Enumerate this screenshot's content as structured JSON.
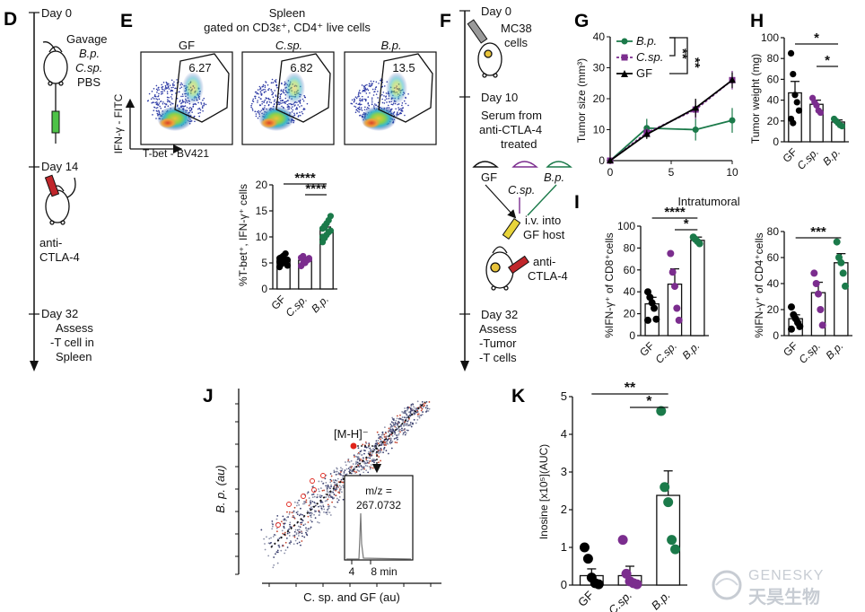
{
  "panels": {
    "D": {
      "label": "D",
      "day0": "Day 0",
      "gavage": [
        "Gavage",
        "B.p.",
        "C.sp.",
        "PBS"
      ],
      "day14": "Day 14",
      "anti": [
        "anti-",
        "CTLA-4"
      ],
      "day32": "Day 32",
      "assess": [
        "Assess",
        "-T cell in",
        "Spleen"
      ]
    },
    "E": {
      "label": "E",
      "title1": "Spleen",
      "title2": "gated on CD3ε⁺, CD4⁺ live cells",
      "flow_groups": [
        "GF",
        "C.sp.",
        "B.p."
      ],
      "flow_pct": [
        "6.27",
        "6.82",
        "13.5"
      ],
      "flow_ylabel": "IFN-γ - FITC",
      "flow_xlabel": "T-bet - BV421",
      "bar_ylabel": "%T-bet⁺, IFN-γ⁺ cells",
      "sig": [
        "****",
        "****"
      ]
    },
    "F": {
      "label": "F",
      "day0": "Day 0",
      "mc38": [
        "MC38",
        "cells"
      ],
      "day10": "Day 10",
      "serum": [
        "Serum from",
        "anti-CTLA-4",
        "treated"
      ],
      "donors": [
        "GF",
        "C.sp.",
        "B.p."
      ],
      "iv": [
        "i.v. into",
        "GF host"
      ],
      "anti": [
        "anti-",
        "CTLA-4"
      ],
      "day32": "Day 32",
      "assess": [
        "Assess",
        "-Tumor",
        "-T cells"
      ]
    },
    "G": {
      "label": "G",
      "ylabel": "Tumor size (mm³)",
      "legend": [
        "B.p.",
        "C.sp.",
        "GF"
      ],
      "sig": [
        "**",
        "**"
      ]
    },
    "H": {
      "label": "H",
      "ylabel": "Tumor weight (mg)",
      "sig": [
        "*",
        "*"
      ]
    },
    "I": {
      "label": "I",
      "title": "Intratumoral",
      "ylabel_cd8": "%IFN-γ⁺ of  CD8⁺cells",
      "ylabel_cd4": "%IFN-γ⁺ of  CD4⁺cells",
      "sig_cd8": [
        "****",
        "*"
      ],
      "sig_cd4": [
        "***"
      ]
    },
    "J": {
      "label": "J",
      "ylabel": "B. p. (au)",
      "xlabel": "C. sp. and GF (au)",
      "ion": "[M-H]⁻",
      "mz": [
        "m/z =",
        "267.0732"
      ],
      "inset_ticks": [
        "4",
        "8 min"
      ]
    },
    "K": {
      "label": "K",
      "ylabel": "Inosine [x10⁵](AUC)",
      "sig": [
        "**",
        "*"
      ]
    }
  },
  "colors": {
    "GF": "#000000",
    "Csp": "#7b2d8e",
    "Bp": "#1b7a4a",
    "sig_point": "#e0241b",
    "tube": "#4dc247"
  },
  "watermark": {
    "line1": "GENESKY",
    "line2": "天昊生物"
  },
  "chart_data": [
    {
      "type": "bar",
      "panel": "E",
      "categories": [
        "GF",
        "C.sp.",
        "B.p."
      ],
      "values": [
        5.6,
        5.5,
        11.3
      ],
      "errors": [
        0.4,
        0.3,
        0.6
      ],
      "ylim": [
        0,
        20
      ],
      "yticks": [
        0,
        5,
        10,
        15,
        20
      ],
      "points": [
        [
          4.2,
          4.8,
          5.0,
          5.4,
          5.6,
          5.9,
          6.1,
          6.4,
          6.8,
          4.5,
          5.2,
          6.0
        ],
        [
          4.4,
          4.9,
          5.2,
          5.5,
          5.7,
          6.0,
          6.3,
          5.0,
          5.6,
          5.9
        ],
        [
          9.0,
          9.8,
          10.4,
          10.9,
          11.2,
          11.6,
          12.1,
          12.6,
          13.2,
          14.0,
          10.0,
          11.8
        ]
      ]
    },
    {
      "type": "line",
      "panel": "G",
      "x": [
        0,
        3,
        7,
        10
      ],
      "series": [
        {
          "name": "B.p.",
          "values": [
            0,
            10.5,
            10,
            13
          ],
          "errors": [
            0,
            3,
            3.5,
            4
          ]
        },
        {
          "name": "C.sp.",
          "values": [
            0,
            9,
            16.5,
            26
          ],
          "errors": [
            0,
            1.5,
            3,
            3
          ]
        },
        {
          "name": "GF",
          "values": [
            0,
            8.5,
            17,
            26
          ],
          "errors": [
            0,
            1.5,
            3,
            2.5
          ]
        }
      ],
      "xlim": [
        0,
        10
      ],
      "ylim": [
        0,
        40
      ],
      "xticks": [
        0,
        5,
        10
      ],
      "yticks": [
        0,
        10,
        20,
        30,
        40
      ]
    },
    {
      "type": "bar",
      "panel": "H",
      "categories": [
        "GF",
        "C.sp.",
        "B.p."
      ],
      "values": [
        47,
        36,
        19
      ],
      "errors": [
        11,
        4,
        2
      ],
      "ylim": [
        0,
        100
      ],
      "yticks": [
        0,
        20,
        40,
        60,
        80,
        100
      ],
      "points": [
        [
          85,
          65,
          45,
          38,
          30,
          22,
          18
        ],
        [
          42,
          38,
          35,
          30,
          28
        ],
        [
          22,
          20,
          18,
          16,
          15
        ]
      ]
    },
    {
      "type": "bar",
      "panel": "I-CD8",
      "categories": [
        "GF",
        "C.sp.",
        "B.p."
      ],
      "values": [
        29,
        47,
        87
      ],
      "errors": [
        6,
        14,
        3
      ],
      "ylim": [
        0,
        100
      ],
      "yticks": [
        0,
        20,
        40,
        60,
        80,
        100
      ],
      "points": [
        [
          40,
          35,
          30,
          25,
          15,
          14
        ],
        [
          75,
          58,
          45,
          25,
          14
        ],
        [
          90,
          88,
          86,
          84
        ]
      ]
    },
    {
      "type": "bar",
      "panel": "I-CD4",
      "categories": [
        "GF",
        "C.sp.",
        "B.p."
      ],
      "values": [
        13,
        33,
        56
      ],
      "errors": [
        3,
        8,
        7
      ],
      "ylim": [
        0,
        80
      ],
      "yticks": [
        0,
        20,
        40,
        60,
        80
      ],
      "points": [
        [
          22,
          16,
          13,
          10,
          7,
          5
        ],
        [
          48,
          40,
          32,
          20,
          8
        ],
        [
          72,
          60,
          56,
          48,
          38
        ]
      ]
    },
    {
      "type": "bar",
      "panel": "K",
      "categories": [
        "GF",
        "C.sp.",
        "B.p."
      ],
      "values": [
        0.25,
        0.25,
        2.38
      ],
      "errors": [
        0.18,
        0.25,
        0.65
      ],
      "ylim": [
        0,
        5
      ],
      "yticks": [
        0,
        1,
        2,
        3,
        4,
        5
      ],
      "points": [
        [
          1.0,
          0.7,
          0.2,
          0.05,
          0.02
        ],
        [
          1.2,
          0.3,
          0.1,
          0.05,
          0.02
        ],
        [
          4.62,
          2.6,
          2.2,
          1.2,
          0.95
        ]
      ]
    }
  ]
}
